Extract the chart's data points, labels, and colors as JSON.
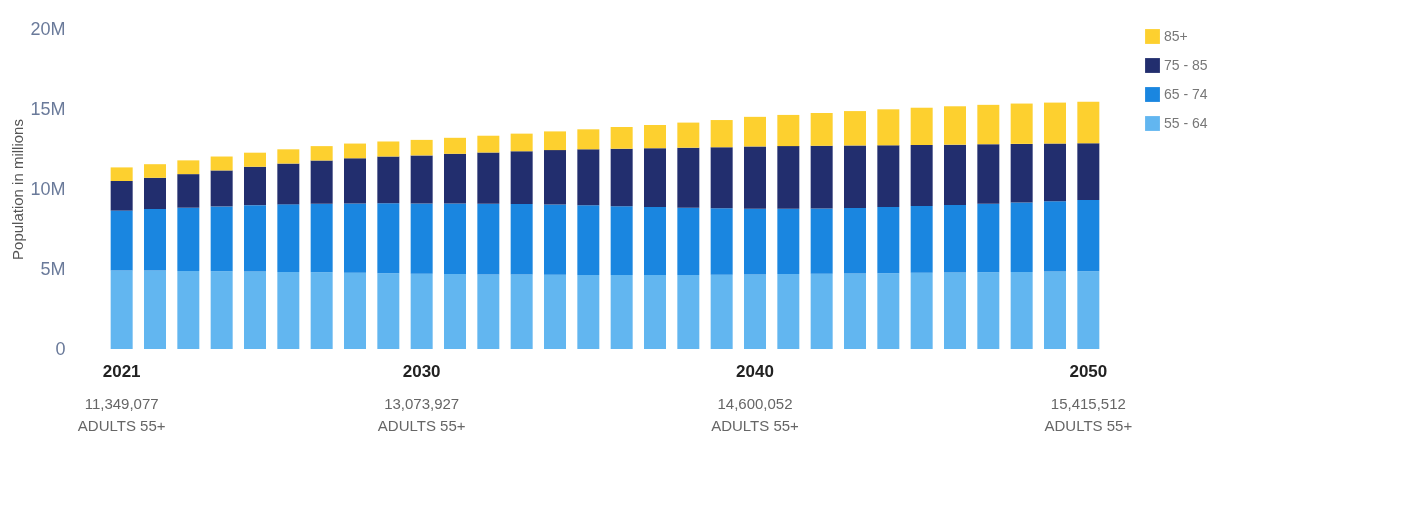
{
  "chart_data": {
    "type": "bar",
    "stacked": true,
    "categories": [
      "2021",
      null,
      null,
      null,
      null,
      null,
      null,
      null,
      null,
      "2030",
      null,
      null,
      null,
      null,
      null,
      null,
      null,
      null,
      null,
      "2040",
      null,
      null,
      null,
      null,
      null,
      null,
      null,
      null,
      null,
      "2050"
    ],
    "series": [
      {
        "name": "55 - 64",
        "color": "#62b6f0",
        "values": [
          4.9,
          4.9,
          4.88,
          4.86,
          4.84,
          4.82,
          4.8,
          4.77,
          4.74,
          4.7,
          4.68,
          4.66,
          4.65,
          4.64,
          4.63,
          4.62,
          4.62,
          4.63,
          4.64,
          4.66,
          4.68,
          4.7,
          4.72,
          4.74,
          4.76,
          4.78,
          4.8,
          4.82,
          4.84,
          4.86
        ]
      },
      {
        "name": "65 - 74",
        "color": "#1a86e0",
        "values": [
          3.75,
          3.85,
          3.95,
          4.05,
          4.15,
          4.22,
          4.28,
          4.33,
          4.37,
          4.4,
          4.42,
          4.42,
          4.41,
          4.39,
          4.35,
          4.3,
          4.25,
          4.2,
          4.15,
          4.1,
          4.08,
          4.08,
          4.1,
          4.13,
          4.17,
          4.22,
          4.28,
          4.34,
          4.4,
          4.45
        ]
      },
      {
        "name": "75 - 85",
        "color": "#222e6e",
        "values": [
          1.85,
          1.95,
          2.1,
          2.25,
          2.4,
          2.55,
          2.7,
          2.82,
          2.92,
          3.0,
          3.1,
          3.2,
          3.3,
          3.4,
          3.5,
          3.6,
          3.68,
          3.75,
          3.82,
          3.9,
          3.92,
          3.92,
          3.9,
          3.86,
          3.82,
          3.77,
          3.72,
          3.66,
          3.6,
          3.55
        ]
      },
      {
        "name": "85+",
        "color": "#fdd02f",
        "values": [
          0.85,
          0.85,
          0.86,
          0.87,
          0.88,
          0.89,
          0.9,
          0.92,
          0.94,
          0.97,
          1.0,
          1.05,
          1.1,
          1.17,
          1.25,
          1.35,
          1.45,
          1.57,
          1.7,
          1.85,
          1.95,
          2.05,
          2.15,
          2.25,
          2.33,
          2.4,
          2.46,
          2.52,
          2.56,
          2.6
        ]
      }
    ],
    "ylabel": "Population in millions",
    "ylim": [
      0,
      20
    ],
    "yticks": [
      0,
      {
        "value": 5,
        "label": "5M"
      },
      {
        "value": 10,
        "label": "10M"
      },
      {
        "value": 15,
        "label": "15M"
      },
      {
        "value": 20,
        "label": "20M"
      }
    ],
    "grid": false,
    "legend": "top right",
    "annotations": [
      "11,349,077",
      "ADULTS 55+",
      "13,073,927",
      "ADULTS 55+",
      "14,600,052",
      "ADULTS 55+",
      "15,415,512",
      "ADULTS 55+"
    ]
  }
}
